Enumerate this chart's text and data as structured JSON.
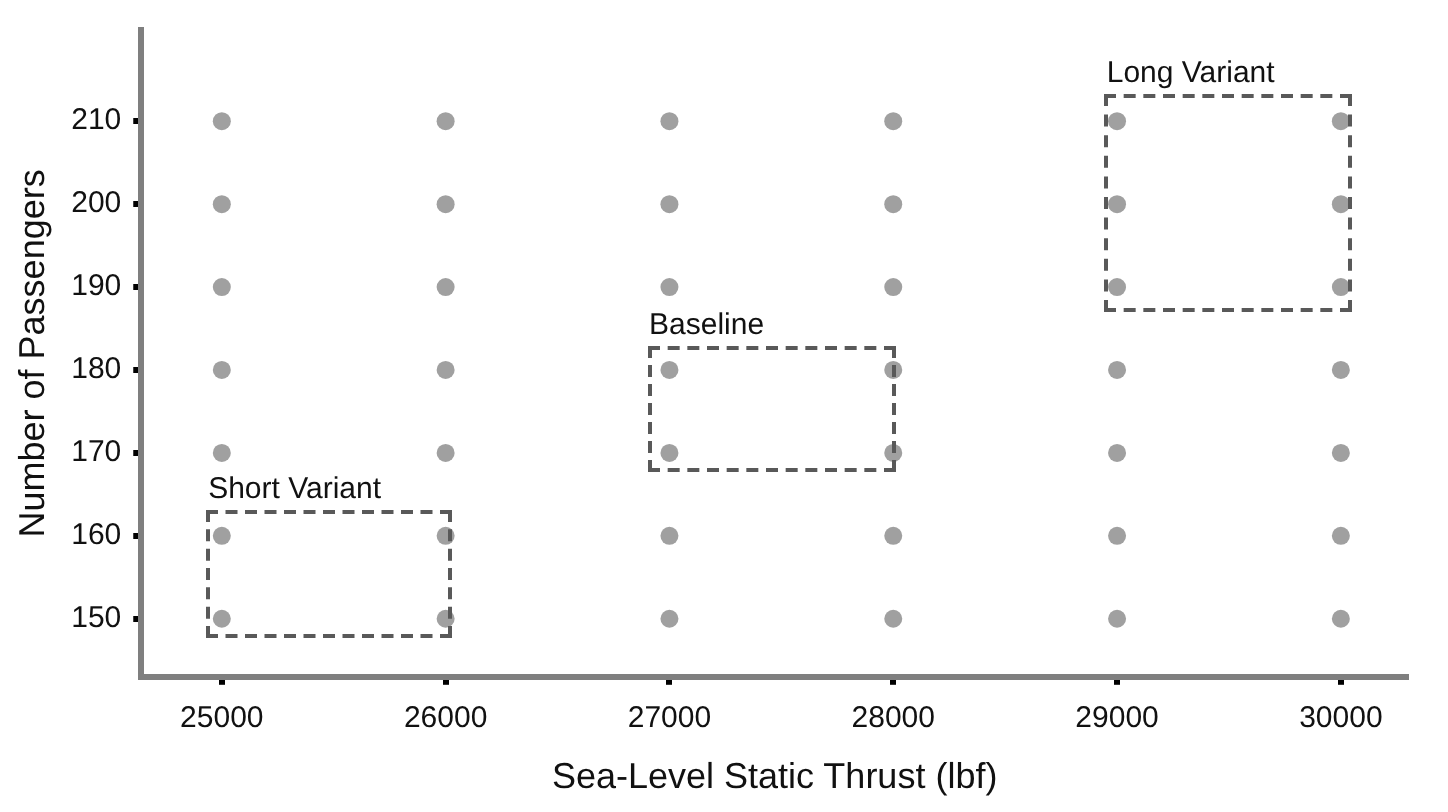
{
  "chart_data": {
    "type": "scatter",
    "xlabel": "Sea-Level Static Thrust (lbf)",
    "ylabel": "Number of Passengers",
    "xlim": [
      24640,
      30300
    ],
    "xticks": [
      25000,
      26000,
      27000,
      28000,
      29000,
      30000
    ],
    "ylim": [
      143,
      221
    ],
    "yticks": [
      150,
      160,
      170,
      180,
      190,
      200,
      210
    ],
    "marker": "circle",
    "series": [
      {
        "type": "scatter",
        "color": "#a0a0a0",
        "x": [
          25000,
          25000,
          25000,
          25000,
          25000,
          25000,
          25000,
          26000,
          26000,
          26000,
          26000,
          26000,
          26000,
          26000,
          27000,
          27000,
          27000,
          27000,
          27000,
          27000,
          27000,
          28000,
          28000,
          28000,
          28000,
          28000,
          28000,
          28000,
          29000,
          29000,
          29000,
          29000,
          29000,
          29000,
          29000,
          30000,
          30000,
          30000,
          30000,
          30000,
          30000,
          30000
        ],
        "values": [
          150,
          160,
          170,
          180,
          190,
          200,
          210,
          150,
          160,
          170,
          180,
          190,
          200,
          210,
          150,
          160,
          170,
          180,
          190,
          200,
          210,
          150,
          160,
          170,
          180,
          190,
          200,
          210,
          150,
          160,
          170,
          180,
          190,
          200,
          210,
          150,
          160,
          170,
          180,
          190,
          200,
          210
        ]
      }
    ],
    "annotations": [
      "Short Variant",
      "Baseline",
      "Long Variant"
    ]
  }
}
